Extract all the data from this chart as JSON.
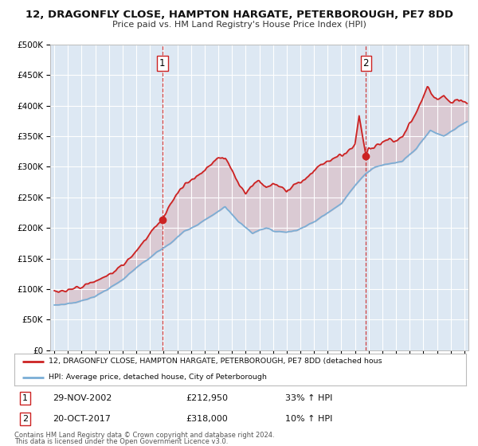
{
  "title": "12, DRAGONFLY CLOSE, HAMPTON HARGATE, PETERBOROUGH, PE7 8DD",
  "subtitle": "Price paid vs. HM Land Registry's House Price Index (HPI)",
  "hpi_color": "#7aaed6",
  "price_color": "#cc2222",
  "background_color": "#ffffff",
  "plot_bg_color": "#dde8f3",
  "grid_color": "#ffffff",
  "fill_color": "#dde8f3",
  "ylim": [
    0,
    500000
  ],
  "yticks": [
    0,
    50000,
    100000,
    150000,
    200000,
    250000,
    300000,
    350000,
    400000,
    450000,
    500000
  ],
  "xlim_start": 1994.7,
  "xlim_end": 2025.3,
  "transaction1_x": 2002.91,
  "transaction1_y": 212950,
  "transaction1_label": "1",
  "transaction1_date": "29-NOV-2002",
  "transaction1_price": "£212,950",
  "transaction1_hpi": "33% ↑ HPI",
  "transaction2_x": 2017.8,
  "transaction2_y": 318000,
  "transaction2_label": "2",
  "transaction2_date": "20-OCT-2017",
  "transaction2_price": "£318,000",
  "transaction2_hpi": "10% ↑ HPI",
  "legend_line1": "12, DRAGONFLY CLOSE, HAMPTON HARGATE, PETERBOROUGH, PE7 8DD (detached hous",
  "legend_line2": "HPI: Average price, detached house, City of Peterborough",
  "footnote1": "Contains HM Land Registry data © Crown copyright and database right 2024.",
  "footnote2": "This data is licensed under the Open Government Licence v3.0."
}
